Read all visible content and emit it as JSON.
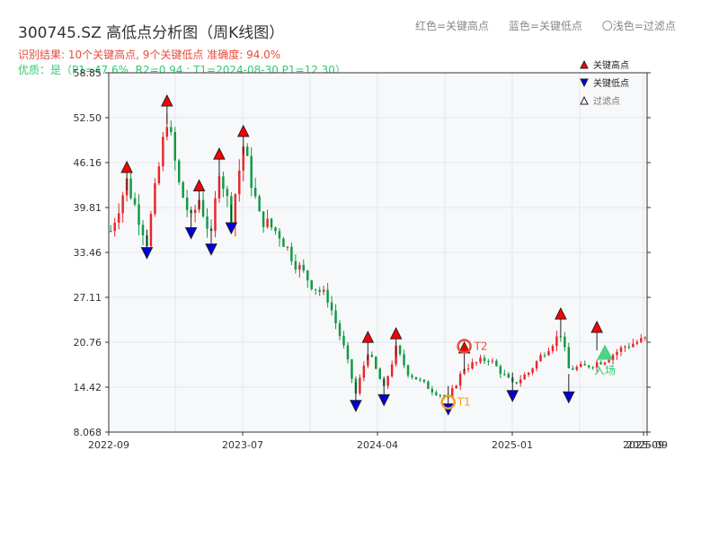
{
  "header": {
    "title": "300745.SZ 高低点分析图（周K线图）",
    "status": "识别结果: 10个关键高点, 9个关键低点  准确度: 94.0%",
    "quality": "优质：是（P1=47.6%, R2=0.94 ; T1=2024-08-30 P1=12.30）",
    "legend_top": [
      "红色=关键高点",
      "蓝色=关键低点",
      "〇浅色=过滤点"
    ]
  },
  "colors": {
    "up": "#e8262b",
    "down": "#119944",
    "high_marker": "#ff0000",
    "low_marker": "#0000dd",
    "grid": "#e4e6ea",
    "plot_bg": "#f7f8fa",
    "t1": "#f0a020",
    "t2": "#e74c3c",
    "entry": "#2ecc71"
  },
  "chart_data": {
    "type": "candlestick",
    "ylim": [
      8.068,
      58.85
    ],
    "yticks": [
      "8.068",
      "14.42",
      "20.76",
      "27.11",
      "33.46",
      "39.81",
      "46.16",
      "52.50",
      "58.85"
    ],
    "xticks": [
      "2022-09",
      "2023-07",
      "2024-04",
      "2025-01",
      "2025-09",
      "2025-09"
    ],
    "legend": [
      {
        "label": "关键高点",
        "marker": "up-red"
      },
      {
        "label": "关键低点",
        "marker": "down-blue"
      },
      {
        "label": "过滤点",
        "marker": "up-white"
      }
    ],
    "key_highs": [
      {
        "i": 4,
        "price": 44.5
      },
      {
        "i": 14,
        "price": 53.9
      },
      {
        "i": 22,
        "price": 41.9
      },
      {
        "i": 27,
        "price": 46.4
      },
      {
        "i": 33,
        "price": 49.6
      },
      {
        "i": 64,
        "price": 20.5
      },
      {
        "i": 71,
        "price": 21.0
      },
      {
        "i": 88,
        "price": 19.0
      },
      {
        "i": 112,
        "price": 23.8
      },
      {
        "i": 121,
        "price": 21.9
      }
    ],
    "key_lows": [
      {
        "i": 9,
        "price": 34.4
      },
      {
        "i": 20,
        "price": 37.2
      },
      {
        "i": 25,
        "price": 34.9
      },
      {
        "i": 30,
        "price": 37.9
      },
      {
        "i": 61,
        "price": 12.8
      },
      {
        "i": 68,
        "price": 13.6
      },
      {
        "i": 84,
        "price": 12.3
      },
      {
        "i": 100,
        "price": 14.2
      },
      {
        "i": 114,
        "price": 14.0
      }
    ],
    "annotations": [
      {
        "label": "T1",
        "i": 84,
        "price": 12.3
      },
      {
        "label": "T2",
        "i": 88,
        "price": 20.2
      },
      {
        "label": "入场",
        "i": 123,
        "price": 19.3
      }
    ]
  }
}
